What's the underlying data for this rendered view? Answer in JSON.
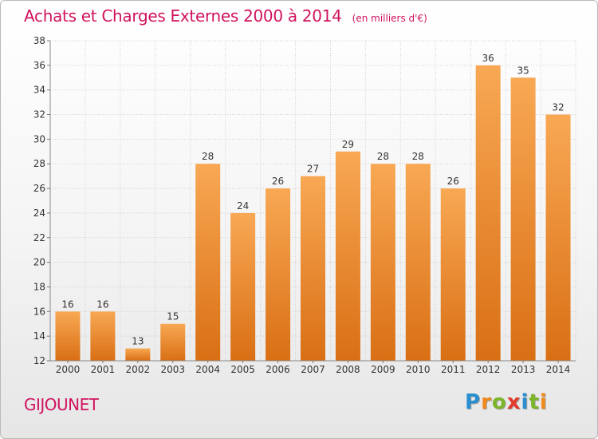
{
  "title": "Achats et Charges Externes 2000 à 2014",
  "unit_label": "(en milliers d'€)",
  "commune": "GIJOUNET",
  "brand": {
    "text": "Proxiti",
    "letters": [
      {
        "ch": "P",
        "color": "#2a8fd0"
      },
      {
        "ch": "r",
        "color": "#f08a1c"
      },
      {
        "ch": "o",
        "color": "#7cb52a"
      },
      {
        "ch": "x",
        "color": "#e23b2c"
      },
      {
        "ch": "i",
        "color": "#2a8fd0"
      },
      {
        "ch": "t",
        "color": "#7cb52a"
      },
      {
        "ch": "i",
        "color": "#f08a1c"
      }
    ]
  },
  "colors": {
    "title": "#d0135f",
    "bar_top": "#f8a854",
    "bar_bottom": "#d96f14",
    "grid": "#cfcfcf",
    "axis_text": "#333333"
  },
  "chart_data": {
    "type": "bar",
    "categories": [
      "2000",
      "2001",
      "2002",
      "2003",
      "2004",
      "2005",
      "2006",
      "2007",
      "2008",
      "2009",
      "2010",
      "2011",
      "2012",
      "2013",
      "2014"
    ],
    "values": [
      16,
      16,
      13,
      15,
      28,
      24,
      26,
      27,
      29,
      28,
      28,
      26,
      36,
      35,
      32
    ],
    "ylim": [
      12,
      38
    ],
    "yticks": [
      12,
      14,
      16,
      18,
      20,
      22,
      24,
      26,
      28,
      30,
      32,
      34,
      36,
      38
    ],
    "grid": true,
    "title": "Achats et Charges Externes 2000 à 2014"
  }
}
